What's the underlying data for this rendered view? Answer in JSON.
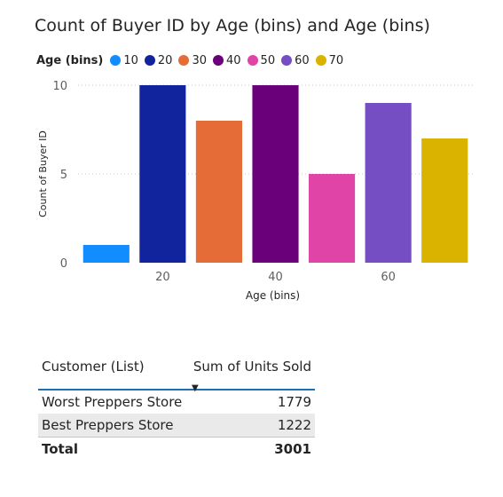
{
  "chart_data": {
    "type": "bar",
    "title": "Count of Buyer ID by Age (bins) and Age (bins)",
    "xlabel": "Age (bins)",
    "ylabel": "Count of Buyer ID",
    "ylim": [
      0,
      10
    ],
    "yticks": [
      0,
      5,
      10
    ],
    "xticks": [
      20,
      40,
      60
    ],
    "grid": true,
    "legend_title": "Age (bins)",
    "legend_position": "top-left",
    "categories": [
      10,
      20,
      30,
      40,
      50,
      60,
      70
    ],
    "values": [
      1,
      10,
      8,
      10,
      5,
      9,
      7
    ],
    "colors": [
      "#118dff",
      "#12239e",
      "#e66c37",
      "#6b007b",
      "#e044a7",
      "#744ec2",
      "#d9b300"
    ]
  },
  "table": {
    "headers": [
      "Customer (List)",
      "Sum of Units Sold"
    ],
    "sort_indicator": "▼",
    "rows": [
      {
        "customer": "Worst Preppers Store",
        "units": "1779"
      },
      {
        "customer": "Best Preppers Store",
        "units": "1222"
      }
    ],
    "total": {
      "label": "Total",
      "units": "3001"
    }
  }
}
